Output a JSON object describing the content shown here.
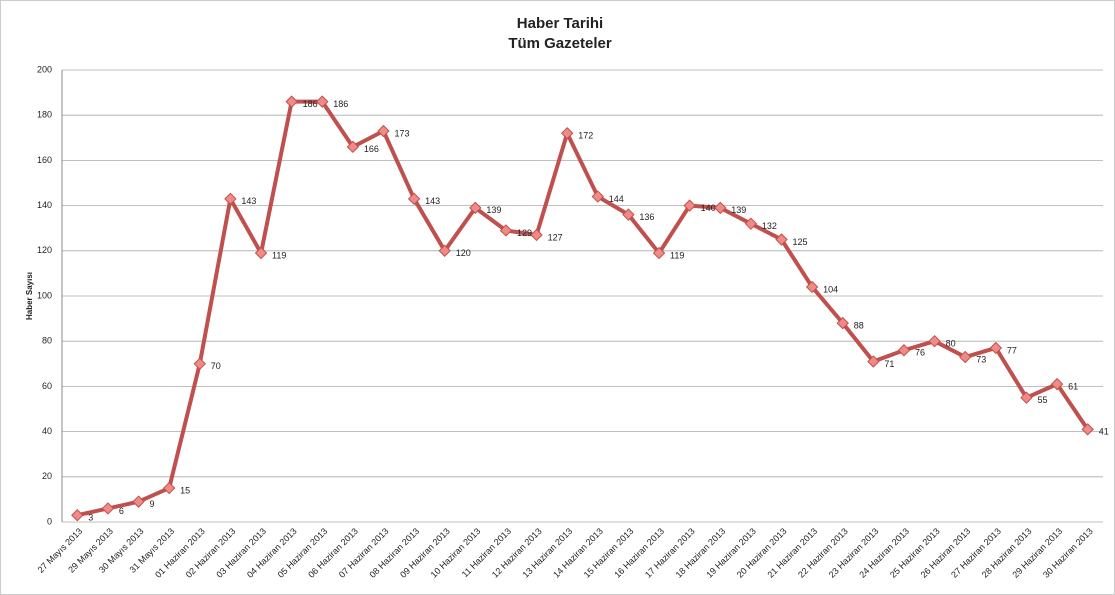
{
  "chart_data": {
    "type": "line",
    "title": "Haber Tarihi",
    "subtitle": "Tüm Gazeteler",
    "y_label": "Haber Sayısı",
    "categories": [
      "27 Mayıs 2013",
      "29 Mayıs 2013",
      "30 Mayıs 2013",
      "31 Mayıs 2013",
      "01 Haziran 2013",
      "02 Haziran 2013",
      "03 Haziran 2013",
      "04 Haziran 2013",
      "05 Haziran 2013",
      "06 Haziran 2013",
      "07 Haziran 2013",
      "08 Haziran 2013",
      "09 Haziran 2013",
      "10 Haziran 2013",
      "11 Haziran 2013",
      "12 Haziran 2013",
      "13 Haziran 2013",
      "14 Haziran 2013",
      "15 Haziran 2013",
      "16 Haziran 2013",
      "17 Haziran 2013",
      "18 Haziran 2013",
      "19 Haziran 2013",
      "20 Haziran 2013",
      "21 Haziran 2013",
      "22 Haziran 2013",
      "23 Haziran 2013",
      "24 Haziran 2013",
      "25 Haziran 2013",
      "26 Haziran 2013",
      "27 Haziran 2013",
      "28 Haziran 2013",
      "29 Haziran 2013",
      "30 Haziran 2013"
    ],
    "values": [
      3,
      6,
      9,
      15,
      70,
      143,
      119,
      186,
      186,
      166,
      173,
      143,
      120,
      139,
      129,
      127,
      172,
      144,
      136,
      119,
      140,
      139,
      132,
      125,
      104,
      88,
      71,
      76,
      80,
      73,
      77,
      55,
      61,
      41
    ],
    "color": "#c0504d",
    "marker_color": "#f08a86",
    "ylim": [
      0,
      200
    ],
    "yticks": [
      0,
      20,
      40,
      60,
      80,
      100,
      120,
      140,
      160,
      180,
      200
    ],
    "grid": true
  }
}
